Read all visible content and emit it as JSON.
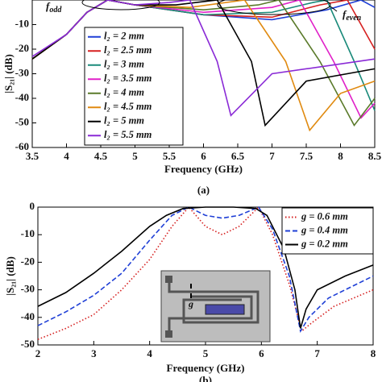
{
  "chart_data": [
    {
      "type": "line",
      "y_label": "|S₂₁| (dB)",
      "x_label": "Frequency (GHz)",
      "caption": "(a)",
      "xlim": [
        3.5,
        8.5
      ],
      "xticks": [
        3.5,
        4,
        4.5,
        5,
        5.5,
        6,
        6.5,
        7,
        7.5,
        8,
        8.5
      ],
      "ylim": [
        -60,
        0
      ],
      "yticks": [
        -10,
        -20,
        -30,
        -40,
        -50,
        -60
      ],
      "grid": false,
      "annotations": [
        {
          "text": "f",
          "sub": "odd"
        },
        {
          "text": "f",
          "sub": "even"
        }
      ],
      "series": [
        {
          "name": "l₂ = 2 mm",
          "color": "#1f3fd6",
          "line_style": "solid",
          "x": [
            3.5,
            4,
            4.3,
            4.6,
            5,
            6,
            7,
            7.8,
            8.3,
            8.5
          ],
          "values": [
            -24,
            -14,
            -5,
            0,
            -2,
            -6,
            -8,
            -4,
            0,
            -3
          ]
        },
        {
          "name": "l₂ = 2.5 mm",
          "color": "#d62020",
          "line_style": "solid",
          "x": [
            3.5,
            4,
            4.3,
            4.6,
            5,
            6,
            7,
            7.7,
            8.1,
            8.5
          ],
          "values": [
            -24,
            -14,
            -5,
            0,
            -2,
            -6,
            -7,
            -2,
            0,
            -20
          ]
        },
        {
          "name": "l₂ = 3 mm",
          "color": "#1a8a7a",
          "line_style": "solid",
          "x": [
            3.5,
            4,
            4.3,
            4.6,
            5,
            6,
            7,
            7.6,
            7.8,
            8.2,
            8.5
          ],
          "values": [
            -24,
            -14,
            -5,
            0,
            -2,
            -6,
            -5,
            -1,
            0,
            -25,
            -45
          ]
        },
        {
          "name": "l₂ = 3.5 mm",
          "color": "#e020c8",
          "line_style": "solid",
          "x": [
            3.5,
            4,
            4.3,
            4.6,
            5,
            6,
            7,
            7.4,
            7.9,
            8.3,
            8.5
          ],
          "values": [
            -24,
            -14,
            -5,
            0,
            -2,
            -5,
            -3,
            0,
            -25,
            -48,
            -42
          ]
        },
        {
          "name": "l₂ = 4 mm",
          "color": "#5a7a2a",
          "line_style": "solid",
          "x": [
            3.5,
            4,
            4.3,
            4.6,
            5,
            6,
            6.8,
            7.1,
            7.7,
            8.2,
            8.5
          ],
          "values": [
            -24,
            -14,
            -5,
            0,
            -2,
            -4,
            -2,
            0,
            -25,
            -51,
            -40
          ]
        },
        {
          "name": "l₂ = 4.5 mm",
          "color": "#e08a10",
          "line_style": "solid",
          "x": [
            3.5,
            4,
            4.3,
            4.6,
            5,
            5.8,
            6.6,
            7.2,
            7.55,
            8,
            8.5
          ],
          "values": [
            -24,
            -14,
            -5,
            0,
            -2,
            -3,
            0,
            -25,
            -53,
            -38,
            -33
          ]
        },
        {
          "name": "l₂ = 5 mm",
          "color": "#000000",
          "line_style": "solid",
          "x": [
            3.5,
            4,
            4.3,
            4.6,
            5,
            5.6,
            6.2,
            6.7,
            6.9,
            7.5,
            8.5
          ],
          "values": [
            -24,
            -14,
            -5,
            0,
            -2,
            -2,
            0,
            -25,
            -51,
            -33,
            -28
          ]
        },
        {
          "name": "l₂ = 5.5 mm",
          "color": "#8a2ad6",
          "line_style": "solid",
          "x": [
            3.5,
            4,
            4.3,
            4.6,
            5,
            5.5,
            5.8,
            6.2,
            6.4,
            7,
            8.5
          ],
          "values": [
            -23,
            -14,
            -5,
            0,
            -2,
            -1,
            0,
            -25,
            -47,
            -30,
            -24
          ]
        }
      ]
    },
    {
      "type": "line",
      "y_label": "|S₂₁| (dB)",
      "x_label": "Frequency (GHz)",
      "caption": "(b)",
      "inset_label": "g",
      "xlim": [
        2,
        8
      ],
      "xticks": [
        2,
        3,
        4,
        5,
        6,
        7,
        8
      ],
      "ylim": [
        -50,
        0
      ],
      "yticks": [
        0,
        -10,
        -20,
        -30,
        -40,
        -50
      ],
      "grid": false,
      "series": [
        {
          "name": "g = 0.6 mm",
          "color": "#d62020",
          "line_style": "dotted",
          "x": [
            2,
            2.5,
            3,
            3.5,
            4,
            4.4,
            4.7,
            5,
            5.3,
            5.6,
            5.95,
            6.2,
            6.5,
            6.72,
            6.9,
            7.3,
            8
          ],
          "values": [
            -48,
            -44,
            -39,
            -30,
            -19,
            -7,
            0,
            -7,
            -10,
            -7,
            0,
            -10,
            -28,
            -45,
            -42,
            -36,
            -30
          ]
        },
        {
          "name": "g = 0.4 mm",
          "color": "#1f3fd6",
          "line_style": "dashed",
          "x": [
            2,
            2.5,
            3,
            3.5,
            4,
            4.4,
            4.7,
            5,
            5.3,
            5.6,
            5.95,
            6.2,
            6.5,
            6.7,
            6.85,
            7.2,
            8
          ],
          "values": [
            -43,
            -38,
            -32,
            -24,
            -12,
            -3,
            0,
            -3,
            -4,
            -3,
            0,
            -8,
            -25,
            -45,
            -40,
            -33,
            -25
          ]
        },
        {
          "name": "g = 0.2 mm",
          "color": "#000000",
          "line_style": "solid",
          "x": [
            2,
            2.5,
            3,
            3.5,
            4,
            4.3,
            4.6,
            5,
            5.5,
            5.9,
            6.1,
            6.4,
            6.6,
            6.7,
            6.8,
            7,
            7.5,
            8
          ],
          "values": [
            -36,
            -31,
            -24,
            -16,
            -7,
            -3,
            -0.5,
            0,
            0,
            -0.5,
            -3,
            -15,
            -30,
            -44,
            -37,
            -30,
            -25,
            -21
          ]
        }
      ]
    }
  ]
}
